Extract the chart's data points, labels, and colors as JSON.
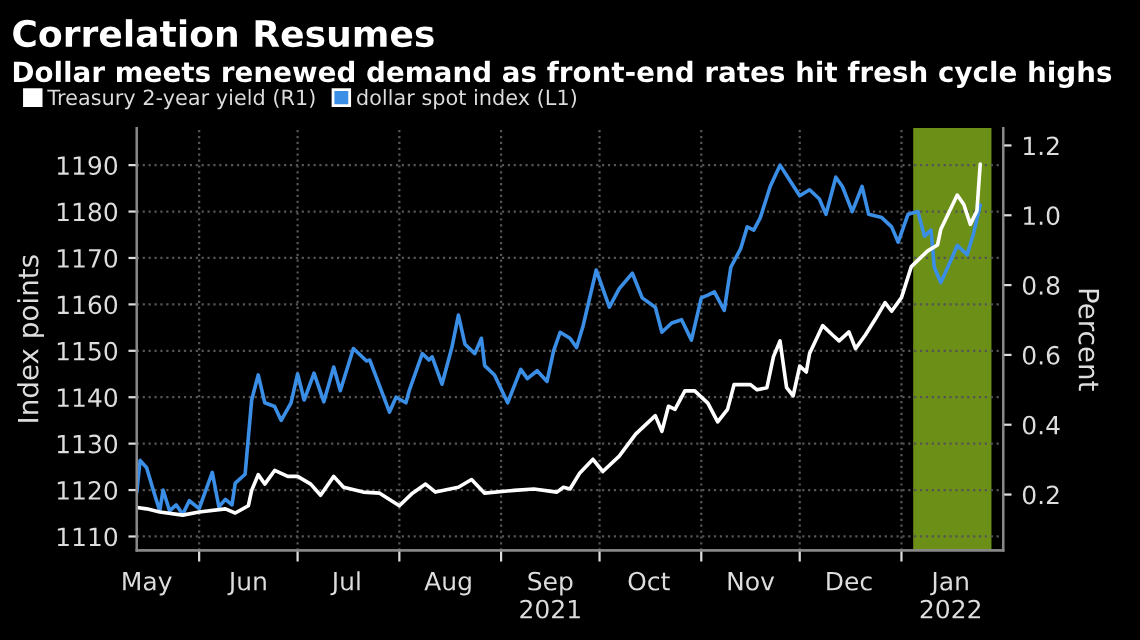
{
  "chart_data": {
    "type": "line",
    "title": "Correlation Resumes",
    "subtitle": "Dollar meets renewed demand as front-end rates hit fresh cycle highs",
    "ylabel": "Index points",
    "y2label": "Percent",
    "xlim": [
      "2021-05-13",
      "2022-02-01"
    ],
    "xticks": [
      {
        "value": "2021-05-16",
        "label": "May"
      },
      {
        "value": "2021-06-16",
        "label": "Jun"
      },
      {
        "value": "2021-07-16",
        "label": "Jul"
      },
      {
        "value": "2021-08-16",
        "label": "Aug"
      },
      {
        "value": "2021-09-16",
        "label": "Sep\n2021"
      },
      {
        "value": "2021-10-16",
        "label": "Oct"
      },
      {
        "value": "2021-11-16",
        "label": "Nov"
      },
      {
        "value": "2021-12-16",
        "label": "Dec"
      },
      {
        "value": "2022-01-16",
        "label": "Jan\n2022"
      },
      {
        "value": "2021-06-01",
        "label": null
      },
      {
        "value": "2021-07-01",
        "label": null
      },
      {
        "value": "2021-08-01",
        "label": null
      },
      {
        "value": "2021-09-01",
        "label": null
      },
      {
        "value": "2021-10-01",
        "label": null
      },
      {
        "value": "2021-11-01",
        "label": null
      },
      {
        "value": "2021-12-01",
        "label": null
      },
      {
        "value": "2022-01-01",
        "label": null
      }
    ],
    "ylim": [
      1107,
      1198
    ],
    "yticks": [
      1110,
      1120,
      1130,
      1140,
      1150,
      1160,
      1170,
      1180,
      1190
    ],
    "y2lim": [
      0.04,
      1.25
    ],
    "y2ticks": [
      0.2,
      0.4,
      0.6,
      0.8,
      {
        "value": 1.0,
        "label": "1.0"
      },
      1.2
    ],
    "grid": true,
    "legend": "top left",
    "line_style": "solid",
    "bands": [
      {
        "axis": "x",
        "from": "2022-01-05",
        "to": "2022-01-28",
        "color": "#8fbf1f"
      }
    ],
    "series": [
      {
        "name": "Treasury 2-year yield (R1)",
        "color": "#ffffff",
        "axis": "y2",
        "x": [
          "2021-05-13",
          "2021-05-16",
          "2021-05-20",
          "2021-05-27",
          "2021-06-01",
          "2021-06-09",
          "2021-06-12",
          "2021-06-16",
          "2021-06-17",
          "2021-06-19",
          "2021-06-21",
          "2021-06-24",
          "2021-06-28",
          "2021-07-01",
          "2021-07-05",
          "2021-07-08",
          "2021-07-12",
          "2021-07-15",
          "2021-07-21",
          "2021-07-26",
          "2021-08-01",
          "2021-08-05",
          "2021-08-09",
          "2021-08-12",
          "2021-08-19",
          "2021-08-23",
          "2021-08-27",
          "2021-09-05",
          "2021-09-11",
          "2021-09-18",
          "2021-09-20",
          "2021-09-22",
          "2021-09-25",
          "2021-09-29",
          "2021-10-02",
          "2021-10-07",
          "2021-10-12",
          "2021-10-18",
          "2021-10-20",
          "2021-10-22",
          "2021-10-24",
          "2021-10-27",
          "2021-10-30",
          "2021-11-03",
          "2021-11-06",
          "2021-11-09",
          "2021-11-11",
          "2021-11-16",
          "2021-11-18",
          "2021-11-21",
          "2021-11-23",
          "2021-11-25",
          "2021-11-27",
          "2021-11-29",
          "2021-12-01",
          "2021-12-03",
          "2021-12-04",
          "2021-12-08",
          "2021-12-11",
          "2021-12-13",
          "2021-12-16",
          "2021-12-18",
          "2021-12-21",
          "2021-12-24",
          "2021-12-27",
          "2021-12-29",
          "2022-01-01",
          "2022-01-04",
          "2022-01-07",
          "2022-01-09",
          "2022-01-12",
          "2022-01-13",
          "2022-01-18",
          "2022-01-20",
          "2022-01-22",
          "2022-01-24",
          "2022-01-25"
        ],
        "values": [
          0.163,
          0.159,
          0.15,
          0.141,
          0.15,
          0.159,
          0.147,
          0.168,
          0.212,
          0.257,
          0.23,
          0.269,
          0.252,
          0.252,
          0.23,
          0.198,
          0.252,
          0.221,
          0.207,
          0.204,
          0.168,
          0.204,
          0.23,
          0.207,
          0.221,
          0.243,
          0.204,
          0.212,
          0.216,
          0.207,
          0.221,
          0.216,
          0.262,
          0.301,
          0.266,
          0.31,
          0.373,
          0.426,
          0.381,
          0.453,
          0.444,
          0.497,
          0.497,
          0.462,
          0.408,
          0.444,
          0.515,
          0.515,
          0.5,
          0.506,
          0.595,
          0.64,
          0.506,
          0.483,
          0.568,
          0.551,
          0.604,
          0.684,
          0.657,
          0.64,
          0.666,
          0.618,
          0.657,
          0.702,
          0.75,
          0.725,
          0.764,
          0.853,
          0.88,
          0.898,
          0.915,
          0.96,
          1.058,
          1.031,
          0.974,
          1.013,
          1.147
        ]
      },
      {
        "name": "dollar spot index (L1)",
        "color": "#3a8ee6",
        "x": [
          "2021-05-13",
          "2021-05-14",
          "2021-05-16",
          "2021-05-18",
          "2021-05-20",
          "2021-05-21",
          "2021-05-23",
          "2021-05-25",
          "2021-05-27",
          "2021-05-29",
          "2021-06-01",
          "2021-06-05",
          "2021-06-07",
          "2021-06-09",
          "2021-06-11",
          "2021-06-12",
          "2021-06-15",
          "2021-06-17",
          "2021-06-19",
          "2021-06-21",
          "2021-06-24",
          "2021-06-26",
          "2021-06-29",
          "2021-07-01",
          "2021-07-03",
          "2021-07-06",
          "2021-07-09",
          "2021-07-12",
          "2021-07-14",
          "2021-07-18",
          "2021-07-22",
          "2021-07-23",
          "2021-07-29",
          "2021-07-31",
          "2021-08-03",
          "2021-08-04",
          "2021-08-08",
          "2021-08-10",
          "2021-08-11",
          "2021-08-14",
          "2021-08-17",
          "2021-08-19",
          "2021-08-21",
          "2021-08-24",
          "2021-08-26",
          "2021-08-27",
          "2021-08-30",
          "2021-09-03",
          "2021-09-07",
          "2021-09-09",
          "2021-09-12",
          "2021-09-15",
          "2021-09-17",
          "2021-09-19",
          "2021-09-22",
          "2021-09-24",
          "2021-09-26",
          "2021-09-30",
          "2021-10-04",
          "2021-10-07",
          "2021-10-11",
          "2021-10-14",
          "2021-10-18",
          "2021-10-20",
          "2021-10-23",
          "2021-10-26",
          "2021-10-29",
          "2021-11-01",
          "2021-11-03",
          "2021-11-05",
          "2021-11-08",
          "2021-11-10",
          "2021-11-13",
          "2021-11-15",
          "2021-11-17",
          "2021-11-19",
          "2021-11-22",
          "2021-11-25",
          "2021-11-28",
          "2021-12-01",
          "2021-12-04",
          "2021-12-07",
          "2021-12-09",
          "2021-12-12",
          "2021-12-14",
          "2021-12-17",
          "2021-12-20",
          "2021-12-22",
          "2021-12-26",
          "2021-12-29",
          "2021-12-31",
          "2022-01-03",
          "2022-01-06",
          "2022-01-08",
          "2022-01-10",
          "2022-01-11",
          "2022-01-13",
          "2022-01-16",
          "2022-01-18",
          "2022-01-21",
          "2022-01-23",
          "2022-01-25"
        ],
        "values": [
          1119.5,
          1126.4,
          1124.8,
          1120,
          1115.5,
          1120,
          1115.5,
          1116.8,
          1114.8,
          1117.7,
          1116,
          1123.8,
          1116.4,
          1118,
          1116.8,
          1121.5,
          1123.4,
          1139.4,
          1144.8,
          1138.8,
          1138,
          1135,
          1138.8,
          1145,
          1139.4,
          1145.2,
          1139,
          1146.5,
          1141.4,
          1150.5,
          1147.8,
          1148,
          1136.8,
          1140,
          1138.8,
          1141.4,
          1149.4,
          1148,
          1148.7,
          1142.8,
          1150.7,
          1157.7,
          1151.4,
          1149.4,
          1152.7,
          1146.8,
          1144.8,
          1138.8,
          1146,
          1144,
          1145.7,
          1143.4,
          1150,
          1154,
          1152.7,
          1150.7,
          1155.4,
          1167.4,
          1159.4,
          1163.4,
          1166.7,
          1161.4,
          1159.4,
          1154,
          1156,
          1156.7,
          1152.3,
          1161.4,
          1162,
          1162.7,
          1158.7,
          1168,
          1172,
          1176.7,
          1176,
          1178.7,
          1185.4,
          1190,
          1186.7,
          1183.4,
          1184.7,
          1182.7,
          1179.4,
          1187.4,
          1185.4,
          1180,
          1185.4,
          1179.4,
          1178.7,
          1176.7,
          1173.4,
          1179.4,
          1180,
          1174.7,
          1176,
          1168,
          1164.7,
          1169.4,
          1172.7,
          1170.7,
          1175.4,
          1181.4
        ]
      }
    ]
  }
}
